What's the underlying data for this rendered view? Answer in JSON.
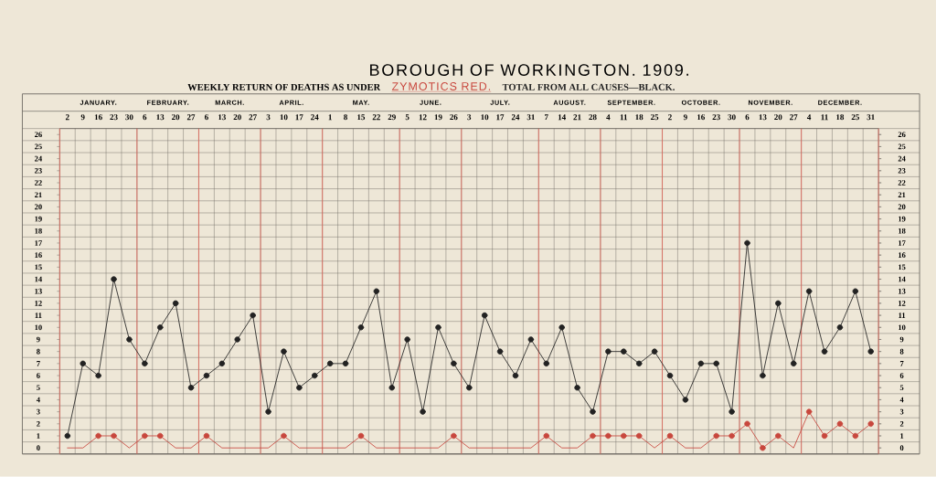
{
  "chart_data": {
    "type": "line",
    "title": "BOROUGH OF WORKINGTON. 1909.",
    "subtitle": "WEEKLY RETURN OF DEATHS AS UNDER",
    "categories": [
      "2",
      "9",
      "16",
      "23",
      "30",
      "6",
      "13",
      "20",
      "27",
      "6",
      "13",
      "20",
      "27",
      "3",
      "10",
      "17",
      "24",
      "1",
      "8",
      "15",
      "22",
      "29",
      "5",
      "12",
      "19",
      "26",
      "3",
      "10",
      "17",
      "24",
      "31",
      "7",
      "14",
      "21",
      "28",
      "4",
      "11",
      "18",
      "25",
      "2",
      "9",
      "16",
      "23",
      "30",
      "6",
      "13",
      "20",
      "27",
      "4",
      "11",
      "18",
      "25",
      "31"
    ],
    "annotations": [
      "JANUARY.",
      "FEBRUARY.",
      "MARCH.",
      "APRIL.",
      "MAY.",
      "JUNE.",
      "JULY.",
      "AUGUST.",
      "SEPTEMBER.",
      "OCTOBER.",
      "NOVEMBER.",
      "DECEMBER."
    ],
    "series": [
      {
        "name": "ZYMOTICS RED.",
        "color": "#c8473d",
        "marker": "none",
        "values": [
          0,
          0,
          1,
          1,
          0,
          1,
          1,
          0,
          0,
          1,
          0,
          0,
          0,
          0,
          1,
          0,
          0,
          0,
          0,
          1,
          0,
          0,
          0,
          0,
          0,
          1,
          0,
          0,
          0,
          0,
          0,
          1,
          0,
          0,
          1,
          1,
          1,
          1,
          0,
          1,
          0,
          0,
          1,
          1,
          2,
          0,
          1,
          0,
          3,
          1,
          2,
          1,
          2
        ]
      },
      {
        "name": "TOTAL FROM ALL CAUSES—**BLACK.**",
        "color": "#222222",
        "marker": "circle",
        "values": [
          1,
          7,
          6,
          14,
          9,
          7,
          10,
          12,
          5,
          6,
          7,
          9,
          11,
          3,
          8,
          5,
          6,
          7,
          7,
          10,
          13,
          5,
          9,
          3,
          10,
          7,
          5,
          11,
          8,
          6,
          9,
          7,
          10,
          5,
          3,
          8,
          8,
          7,
          8,
          6,
          4,
          7,
          7,
          3,
          17,
          6,
          12,
          7,
          13,
          8,
          10,
          13,
          8
        ]
      },
      {
        "type": "scatter",
        "color": "#c8473d",
        "marker": "circle",
        "values": [
          null,
          null,
          1,
          1,
          null,
          1,
          1,
          null,
          null,
          1,
          null,
          null,
          null,
          null,
          1,
          null,
          null,
          null,
          null,
          1,
          null,
          null,
          null,
          null,
          null,
          1,
          null,
          null,
          null,
          null,
          null,
          1,
          null,
          null,
          1,
          1,
          1,
          1,
          null,
          1,
          null,
          null,
          1,
          1,
          2,
          0,
          1,
          null,
          3,
          1,
          2,
          1,
          2
        ]
      }
    ],
    "ylim": [
      -0.5,
      26.5
    ],
    "yticks": [
      0,
      1,
      2,
      3,
      4,
      5,
      6,
      7,
      8,
      9,
      10,
      11,
      12,
      13,
      14,
      15,
      16,
      17,
      18,
      19,
      20,
      21,
      22,
      23,
      24,
      25,
      26
    ],
    "y2lim": [
      -0.5,
      26.5
    ],
    "y2ticks": [
      0,
      1,
      2,
      3,
      4,
      5,
      6,
      7,
      8,
      9,
      10,
      11,
      12,
      13,
      14,
      15,
      16,
      17,
      18,
      19,
      20,
      21,
      22,
      23,
      24,
      25,
      26
    ],
    "grid": true,
    "legend": "top"
  }
}
